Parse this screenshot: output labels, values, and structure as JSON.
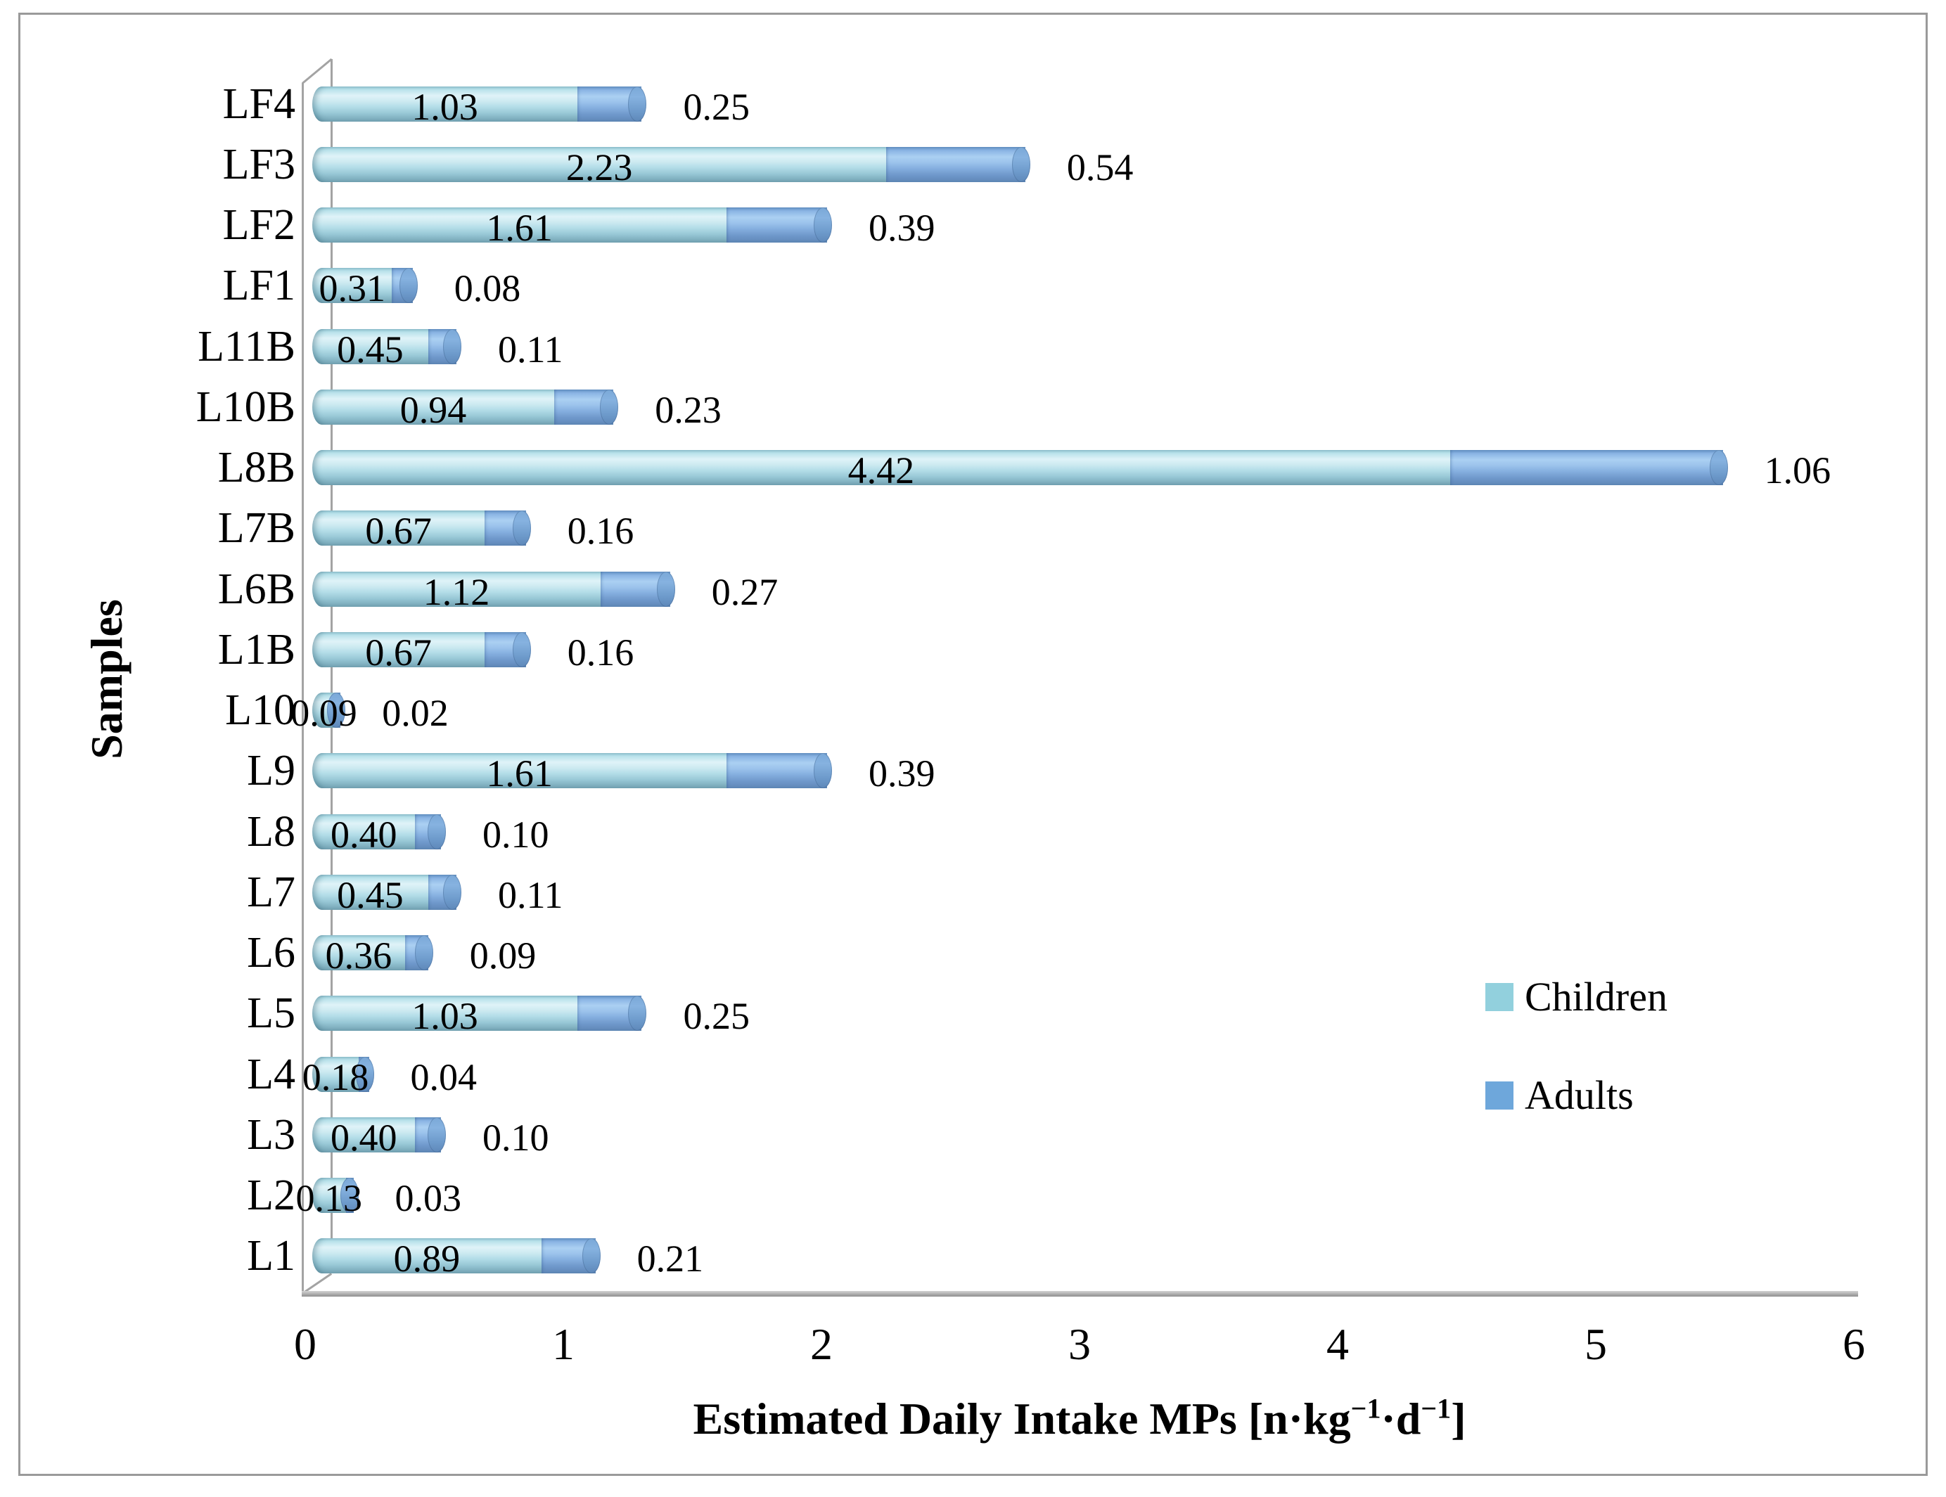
{
  "figure": {
    "background": "#ffffff",
    "border_color": "#9a9a9a"
  },
  "chart_data": {
    "type": "bar",
    "orientation": "horizontal",
    "stacked": true,
    "style": "3d-cylinder",
    "title": "",
    "xlabel": "Estimated Daily Intake MPs [n·kg⁻¹·d⁻¹]",
    "xlabel_parts": {
      "prefix": "Estimated Daily Intake MPs [n·kg",
      "sup1": "−1",
      "mid": "·d",
      "sup2": "−1",
      "suffix": "]"
    },
    "ylabel": "Samples",
    "xlim": [
      0,
      6
    ],
    "x_ticks": [
      "0",
      "1",
      "2",
      "3",
      "4",
      "5",
      "6"
    ],
    "grid": false,
    "legend": {
      "position": "right-middle",
      "entries": [
        {
          "label": "Children",
          "color": "#92d0dd"
        },
        {
          "label": "Adults",
          "color": "#6ea7db"
        }
      ]
    },
    "categories_top_to_bottom": [
      "LF4",
      "LF3",
      "LF2",
      "LF1",
      "L11B",
      "L10B",
      "L8B",
      "L7B",
      "L6B",
      "L1B",
      "L10",
      "L9",
      "L8",
      "L7",
      "L6",
      "L5",
      "L4",
      "L3",
      "L2",
      "L1"
    ],
    "series": [
      {
        "name": "Children",
        "values": [
          1.03,
          2.23,
          1.61,
          0.31,
          0.45,
          0.94,
          4.42,
          0.67,
          1.12,
          0.67,
          0.09,
          1.61,
          0.4,
          0.45,
          0.36,
          1.03,
          0.18,
          0.4,
          0.13,
          0.89
        ],
        "labels": [
          "1.03",
          "2.23",
          "1.61",
          "0.31",
          "0.45",
          "0.94",
          "4.42",
          "0.67",
          "1.12",
          "0.67",
          "0.09",
          "1.61",
          "0.40",
          "0.45",
          "0.36",
          "1.03",
          "0.18",
          "0.40",
          "0.13",
          "0.89"
        ]
      },
      {
        "name": "Adults",
        "values": [
          0.25,
          0.54,
          0.39,
          0.08,
          0.11,
          0.23,
          1.06,
          0.16,
          0.27,
          0.16,
          0.02,
          0.39,
          0.1,
          0.11,
          0.09,
          0.25,
          0.04,
          0.1,
          0.03,
          0.21
        ],
        "labels": [
          "0.25",
          "0.54",
          "0.39",
          "0.08",
          "0.11",
          "0.23",
          "1.06",
          "0.16",
          "0.27",
          "0.16",
          "0.02",
          "0.39",
          "0.10",
          "0.11",
          "0.09",
          "0.25",
          "0.04",
          "0.10",
          "0.03",
          "0.21"
        ]
      }
    ]
  }
}
